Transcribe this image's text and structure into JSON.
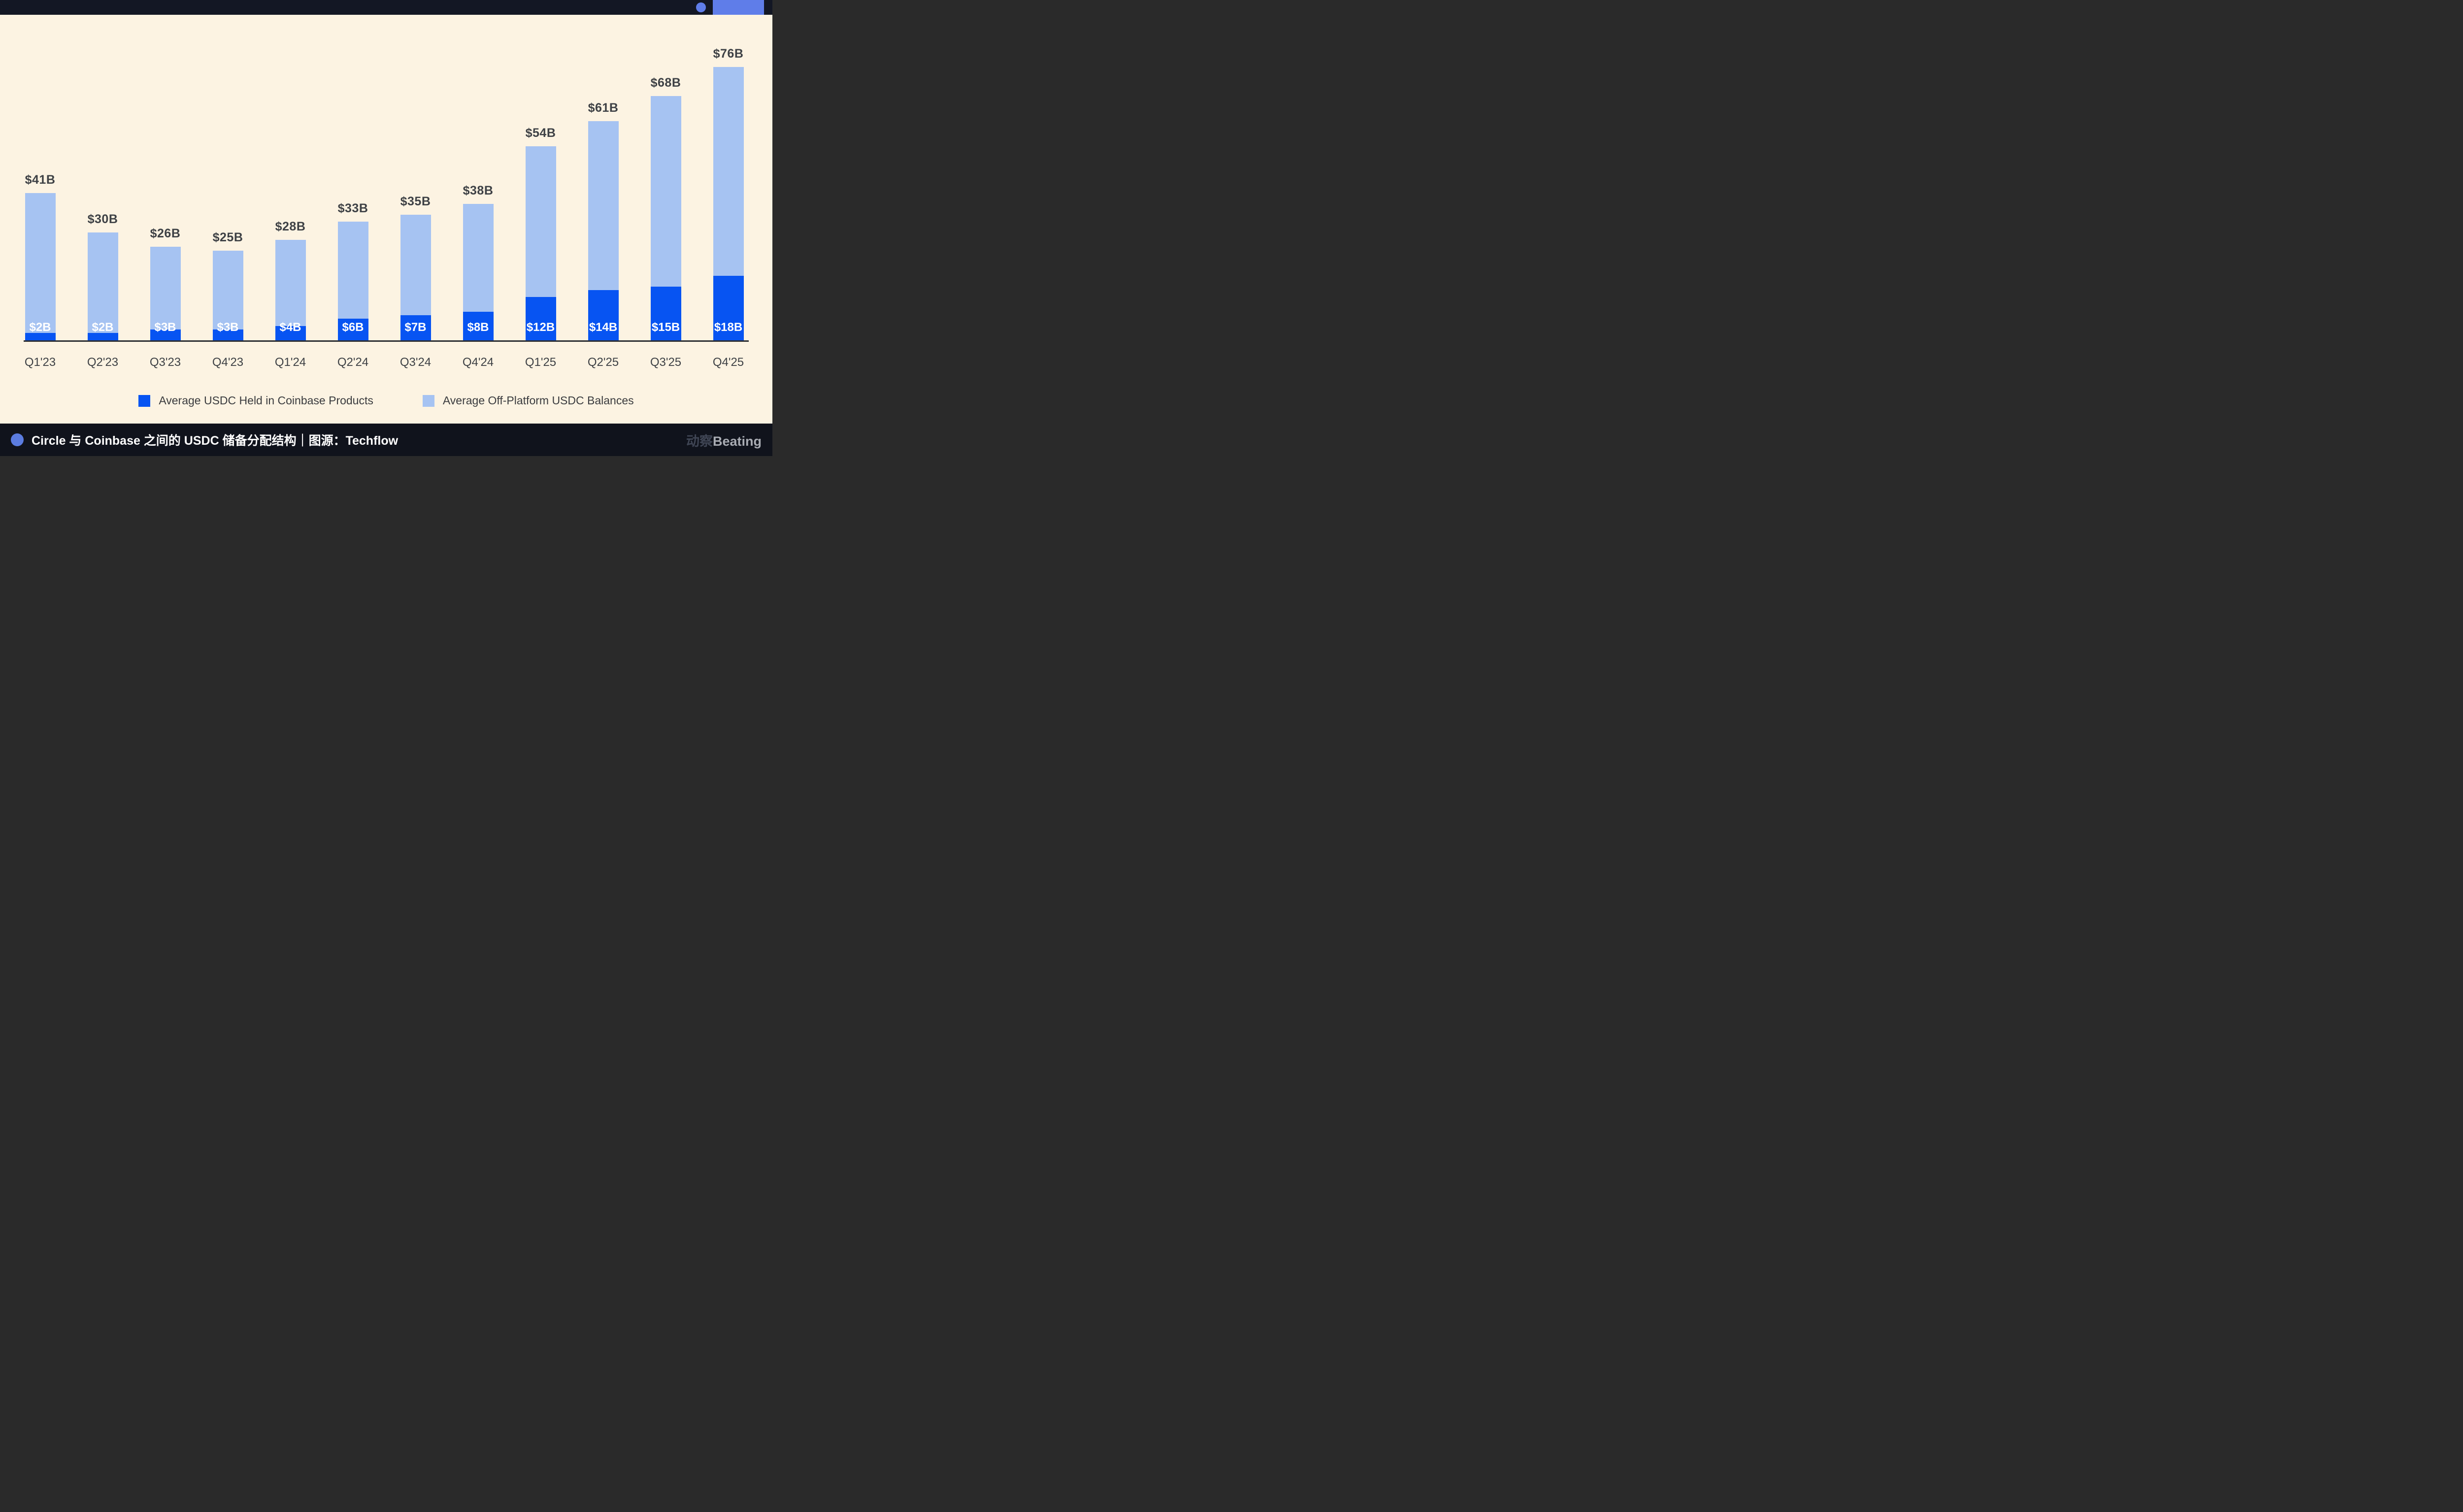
{
  "chart_data": {
    "type": "bar",
    "stacked": true,
    "grid": false,
    "legend_position": "bottom",
    "categories": [
      "Q1'23",
      "Q2'23",
      "Q3'23",
      "Q4'23",
      "Q1'24",
      "Q2'24",
      "Q3'24",
      "Q4'24",
      "Q1'25",
      "Q2'25",
      "Q3'25",
      "Q4'25"
    ],
    "series": [
      {
        "name": "Average USDC Held in Coinbase Products",
        "color": "#0754f2",
        "values": [
          2,
          2,
          3,
          3,
          4,
          6,
          7,
          8,
          12,
          14,
          15,
          18
        ],
        "labels": [
          "$2B",
          "$2B",
          "$3B",
          "$3B",
          "$4B",
          "$6B",
          "$7B",
          "$8B",
          "$12B",
          "$14B",
          "$15B",
          "$18B"
        ]
      },
      {
        "name": "Average Off-Platform USDC Balances",
        "color": "#a6c3f2",
        "values": [
          39,
          28,
          23,
          22,
          24,
          27,
          28,
          30,
          42,
          47,
          53,
          58
        ]
      }
    ],
    "totals": [
      41,
      30,
      26,
      25,
      28,
      33,
      35,
      38,
      54,
      61,
      68,
      76
    ],
    "total_labels": [
      "$41B",
      "$30B",
      "$26B",
      "$25B",
      "$28B",
      "$33B",
      "$35B",
      "$38B",
      "$54B",
      "$61B",
      "$68B",
      "$76B"
    ],
    "ylim": [
      0,
      80
    ],
    "title": "",
    "xlabel": "",
    "ylabel": ""
  },
  "colors": {
    "page_background": "#fcf3e2",
    "topbar_background": "#131724",
    "footer_background": "#10131c",
    "accent_circle": "#5f7de9",
    "accent_rect": "#5f7de9",
    "footer_bullet": "#5b7ce0",
    "axis_line": "#2d2f33",
    "total_label_text": "#3e4145",
    "xlabel_text": "#3e4145",
    "legend_text": "#3a3b3e",
    "value_label_text": "#ffffff",
    "watermark_cn_color": "#3f4554",
    "watermark_en_color": "#a9acb3"
  },
  "footer": {
    "title": "Circle 与 Coinbase 之间的 USDC 储备分配结构｜图源：Techflow",
    "watermark": {
      "cn": "动察",
      "en": "Beating"
    }
  }
}
